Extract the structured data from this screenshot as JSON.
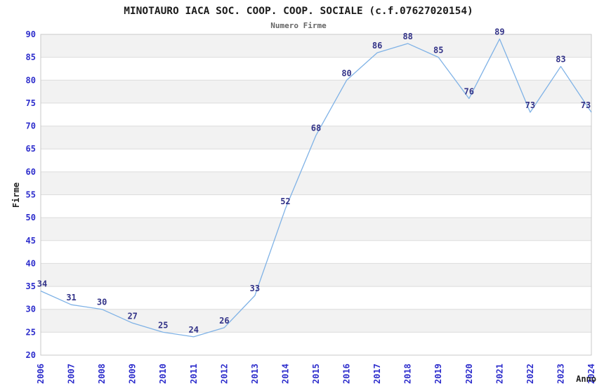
{
  "chart_data": {
    "type": "line",
    "title": "MINOTAURO IACA SOC. COOP. COOP. SOCIALE (c.f.07627020154)",
    "subtitle": "Numero Firme",
    "xlabel": "Anno",
    "ylabel": "Firme",
    "categories": [
      "2006",
      "2007",
      "2008",
      "2009",
      "2010",
      "2011",
      "2012",
      "2013",
      "2014",
      "2015",
      "2016",
      "2017",
      "2018",
      "2019",
      "2020",
      "2021",
      "2022",
      "2023",
      "2024"
    ],
    "values": [
      34,
      31,
      30,
      27,
      25,
      24,
      26,
      33,
      52,
      68,
      80,
      86,
      88,
      85,
      76,
      89,
      73,
      83,
      73
    ],
    "ylim": [
      20,
      90
    ],
    "ytick_step": 5,
    "grid": "horizontal, alternating shaded bands",
    "legend": "none",
    "data_labels": "above each point",
    "colors": {
      "background": "#ffffff",
      "band_shaded": "#f2f2f2",
      "band_plain": "#ffffff",
      "gridline": "#dcdcdc",
      "plot_border": "#c9c9c9",
      "line": "#7fb2e6",
      "data_label": "#333388",
      "tick_label": "#2d2dcc",
      "title": "#1c1c1c",
      "subtitle": "#666666",
      "axis_title": "#222222"
    }
  }
}
